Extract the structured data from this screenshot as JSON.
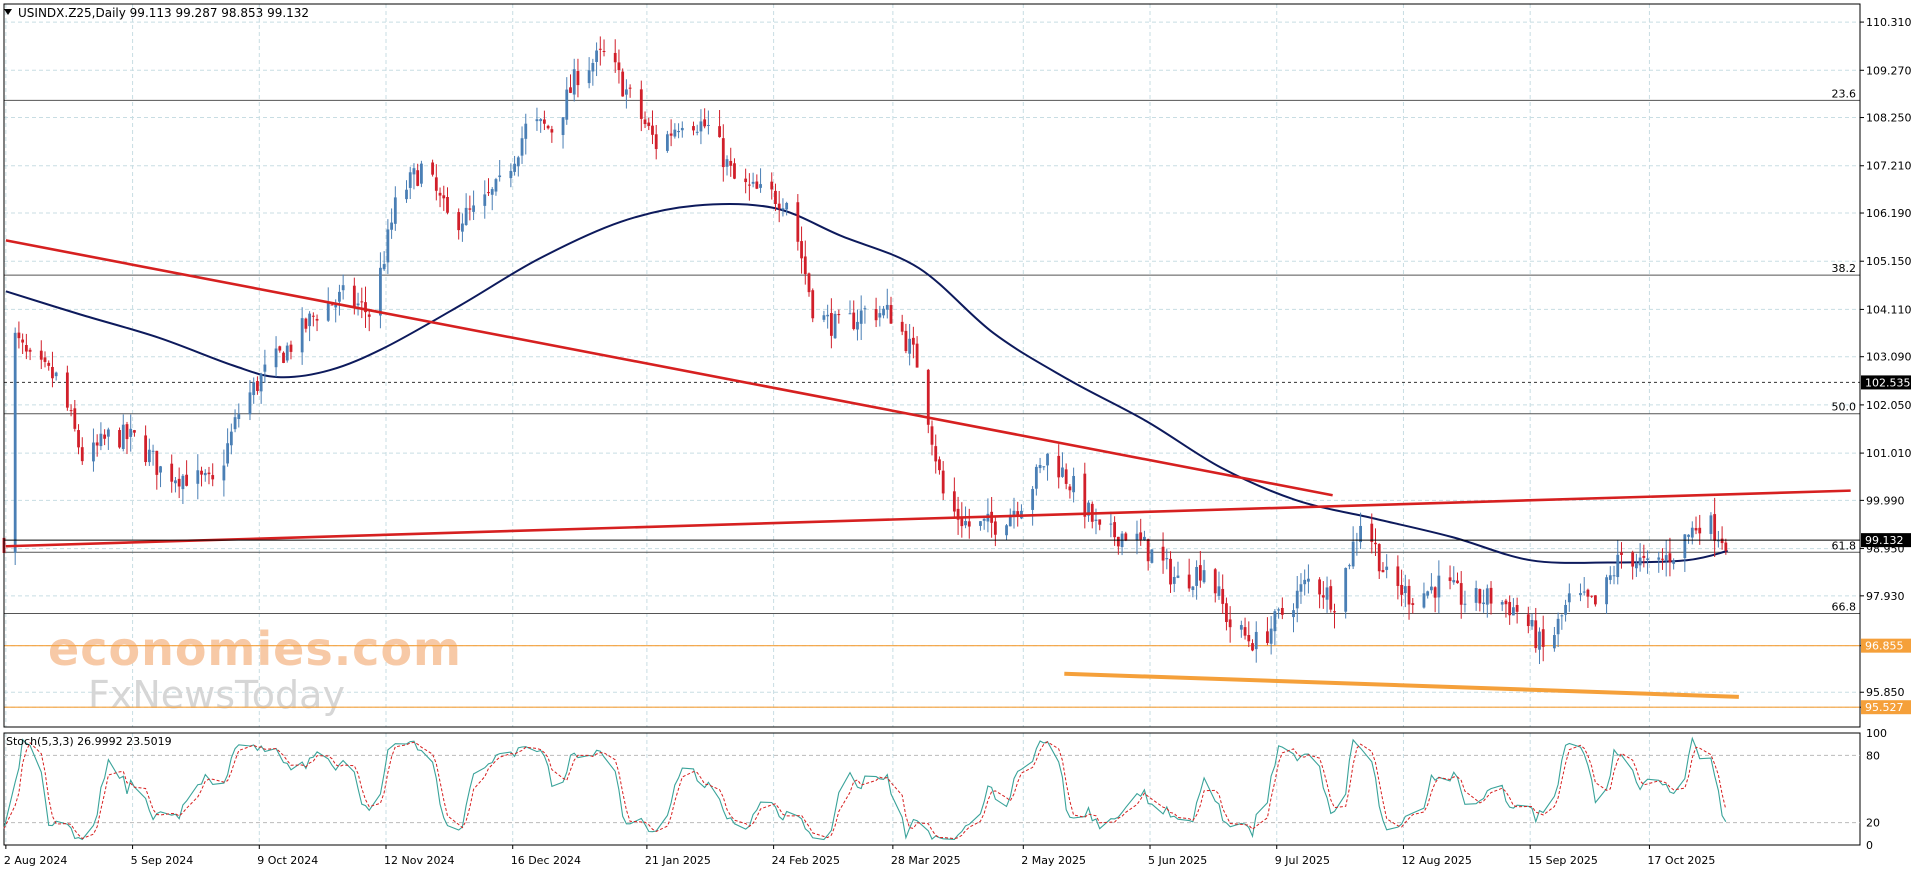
{
  "header": {
    "symbol_line": "USINDX.Z25,Daily  99.113 99.287 98.853 99.132",
    "stoch_line": "Stoch(5,3,3) 26.9992 23.5019"
  },
  "watermark": {
    "line1": "economies.com",
    "line2": "FxNewsToday"
  },
  "colors": {
    "bull": "#4a7fb5",
    "bear": "#d11f2a",
    "ma": "#0d1a5c",
    "trend_red": "#d62020",
    "trend_orange": "#f5a03a",
    "grid": "#c8dde3",
    "stoch_main": "#3aa39a",
    "stoch_signal": "#d62020"
  },
  "chart_data": {
    "type": "candlestick",
    "price_axis": {
      "ticks": [
        "110.310",
        "109.270",
        "108.250",
        "107.210",
        "106.190",
        "105.150",
        "104.110",
        "103.090",
        "102.050",
        "101.010",
        "99.990",
        "98.950",
        "97.930",
        "96.855",
        "95.850",
        "95.527"
      ],
      "ylim": [
        95.1,
        110.7
      ],
      "current_price": "99.132",
      "marked_prices": [
        "102.535",
        "96.855",
        "95.527"
      ]
    },
    "date_axis": [
      "2 Aug 2024",
      "5 Sep 2024",
      "9 Oct 2024",
      "12 Nov 2024",
      "16 Dec 2024",
      "21 Jan 2025",
      "24 Feb 2025",
      "28 Mar 2025",
      "2 May 2025",
      "5 Jun 2025",
      "9 Jul 2025",
      "12 Aug 2025",
      "15 Sep 2025",
      "17 Oct 2025"
    ],
    "fib_levels": [
      {
        "label": "23.6",
        "price": 108.62
      },
      {
        "label": "38.2",
        "price": 104.85
      },
      {
        "label": "50.0",
        "price": 101.86
      },
      {
        "label": "61.8",
        "price": 98.87
      },
      {
        "label": "66.8",
        "price": 97.55
      }
    ],
    "dashed_level": 102.535,
    "horizontal_lines": [
      96.855,
      95.527
    ],
    "trendlines": [
      {
        "color": "trend_red",
        "points": [
          [
            "2 Aug 2024",
            105.6
          ],
          [
            "24 Jul 2025",
            100.1
          ]
        ]
      },
      {
        "color": "trend_red",
        "points": [
          [
            "2 Aug 2024",
            99.0
          ],
          [
            "10 Dec 2025",
            100.2
          ]
        ]
      },
      {
        "color": "trend_orange",
        "points": [
          [
            "13 May 2025",
            96.25
          ],
          [
            "10 Nov 2025",
            95.75
          ]
        ]
      }
    ],
    "moving_average": [
      [
        "2 Aug 2024",
        104.5
      ],
      [
        "22 Aug 2024",
        104.0
      ],
      [
        "12 Sep 2024",
        103.5
      ],
      [
        "2 Oct 2024",
        102.9
      ],
      [
        "14 Oct 2024",
        102.65
      ],
      [
        "28 Oct 2024",
        102.8
      ],
      [
        "12 Nov 2024",
        103.3
      ],
      [
        "2 Dec 2024",
        104.2
      ],
      [
        "23 Dec 2024",
        105.2
      ],
      [
        "14 Jan 2025",
        106.0
      ],
      [
        "3 Feb 2025",
        106.35
      ],
      [
        "24 Feb 2025",
        106.3
      ],
      [
        "14 Mar 2025",
        105.7
      ],
      [
        "4 Apr 2025",
        105.0
      ],
      [
        "24 Apr 2025",
        103.6
      ],
      [
        "14 May 2025",
        102.6
      ],
      [
        "4 Jun 2025",
        101.7
      ],
      [
        "24 Jun 2025",
        100.7
      ],
      [
        "14 Jul 2025",
        100.0
      ],
      [
        "4 Aug 2025",
        99.6
      ],
      [
        "25 Aug 2025",
        99.2
      ],
      [
        "15 Sep 2025",
        98.7
      ],
      [
        "6 Oct 2025",
        98.65
      ],
      [
        "27 Oct 2025",
        98.7
      ],
      [
        "7 Nov 2025",
        98.9
      ]
    ],
    "candles_path": [
      [
        "2 Aug 2024",
        103.8
      ],
      [
        "9 Aug 2024",
        102.9
      ],
      [
        "16 Aug 2024",
        102.6
      ],
      [
        "23 Aug 2024",
        100.8
      ],
      [
        "30 Aug 2024",
        101.4
      ],
      [
        "6 Sep 2024",
        101.3
      ],
      [
        "13 Sep 2024",
        100.6
      ],
      [
        "20 Sep 2024",
        100.5
      ],
      [
        "27 Sep 2024",
        100.3
      ],
      [
        "4 Oct 2024",
        102.0
      ],
      [
        "11 Oct 2024",
        102.8
      ],
      [
        "18 Oct 2024",
        103.4
      ],
      [
        "25 Oct 2024",
        104.1
      ],
      [
        "1 Nov 2024",
        104.4
      ],
      [
        "8 Nov 2024",
        104.0
      ],
      [
        "15 Nov 2024",
        106.5
      ],
      [
        "22 Nov 2024",
        107.2
      ],
      [
        "29 Nov 2024",
        106.0
      ],
      [
        "6 Dec 2024",
        106.2
      ],
      [
        "13 Dec 2024",
        106.8
      ],
      [
        "20 Dec 2024",
        108.1
      ],
      [
        "27 Dec 2024",
        108.0
      ],
      [
        "3 Jan 2025",
        109.3
      ],
      [
        "10 Jan 2025",
        109.6
      ],
      [
        "17 Jan 2025",
        108.6
      ],
      [
        "24 Jan 2025",
        107.6
      ],
      [
        "31 Jan 2025",
        108.3
      ],
      [
        "7 Feb 2025",
        108.0
      ],
      [
        "14 Feb 2025",
        106.8
      ],
      [
        "21 Feb 2025",
        106.6
      ],
      [
        "28 Feb 2025",
        106.5
      ],
      [
        "7 Mar 2025",
        104.0
      ],
      [
        "14 Mar 2025",
        103.7
      ],
      [
        "21 Mar 2025",
        104.1
      ],
      [
        "28 Mar 2025",
        104.0
      ],
      [
        "4 Apr 2025",
        102.9
      ],
      [
        "11 Apr 2025",
        99.9
      ],
      [
        "18 Apr 2025",
        99.4
      ],
      [
        "25 Apr 2025",
        99.5
      ],
      [
        "2 May 2025",
        100.0
      ],
      [
        "9 May 2025",
        101.0
      ],
      [
        "16 May 2025",
        100.2
      ],
      [
        "23 May 2025",
        99.2
      ],
      [
        "30 May 2025",
        99.3
      ],
      [
        "6 Jun 2025",
        98.8
      ],
      [
        "13 Jun 2025",
        98.2
      ],
      [
        "20 Jun 2025",
        98.6
      ],
      [
        "27 Jun 2025",
        97.2
      ],
      [
        "4 Jul 2025",
        96.9
      ],
      [
        "11 Jul 2025",
        97.6
      ],
      [
        "18 Jul 2025",
        98.3
      ],
      [
        "25 Jul 2025",
        97.8
      ],
      [
        "1 Aug 2025",
        99.7
      ],
      [
        "8 Aug 2025",
        98.2
      ],
      [
        "15 Aug 2025",
        97.9
      ],
      [
        "22 Aug 2025",
        98.2
      ],
      [
        "29 Aug 2025",
        97.8
      ],
      [
        "5 Sep 2025",
        97.9
      ],
      [
        "12 Sep 2025",
        97.6
      ],
      [
        "19 Sep 2025",
        96.7
      ],
      [
        "26 Sep 2025",
        97.9
      ],
      [
        "3 Oct 2025",
        97.7
      ],
      [
        "10 Oct 2025",
        98.9
      ],
      [
        "17 Oct 2025",
        98.5
      ],
      [
        "24 Oct 2025",
        98.9
      ],
      [
        "31 Oct 2025",
        99.6
      ],
      [
        "7 Nov 2025",
        99.13
      ]
    ],
    "stochastic": {
      "levels": [
        80,
        20
      ],
      "scale_labels": [
        "100",
        "80",
        "20",
        "0"
      ],
      "current": {
        "main": 26.9992,
        "signal": 23.5019
      }
    }
  }
}
